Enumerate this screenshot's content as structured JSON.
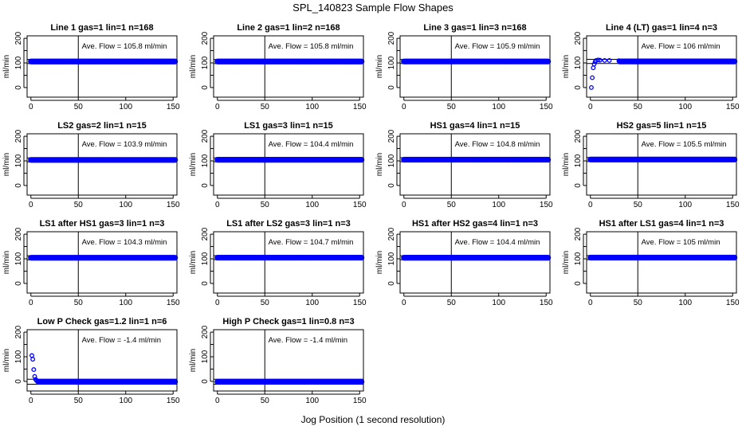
{
  "chart_data": {
    "type": "scatter",
    "title": "SPL_140823  Sample Flow Shapes",
    "xlabel": "Jog Position (1 second resolution)",
    "ylabel": "ml/min",
    "xlim": [
      -4,
      154
    ],
    "ylim": [
      -39,
      210
    ],
    "xticks": [
      0,
      50,
      100,
      150
    ],
    "yticks": [
      0,
      50,
      100,
      150,
      200
    ],
    "ytick_labels": [
      "0",
      "",
      "100",
      "",
      "200"
    ],
    "vline_x": 50,
    "ann_prefix": "Ave. Flow = ",
    "ann_unit": "ml/min",
    "series_color": "#0000ff",
    "panels": [
      {
        "title": "Line 1 gas=1 lin=1 n=168",
        "avg": "105.8",
        "steady": 105.8,
        "startup": []
      },
      {
        "title": "Line 2 gas=1 lin=2 n=168",
        "avg": "105.8",
        "steady": 105.8,
        "startup": []
      },
      {
        "title": "Line 3 gas=1 lin=3 n=168",
        "avg": "105.9",
        "steady": 105.9,
        "startup": []
      },
      {
        "title": "Line 4 (LT) gas=1 lin=4 n=3",
        "avg": "106",
        "steady": 106,
        "startup": [
          [
            1,
            0
          ],
          [
            2,
            40
          ],
          [
            3,
            80
          ],
          [
            4,
            95
          ],
          [
            5,
            105
          ],
          [
            6,
            110
          ],
          [
            8,
            112
          ],
          [
            10,
            111
          ],
          [
            15,
            110
          ],
          [
            20,
            110
          ],
          [
            30,
            109
          ]
        ]
      },
      {
        "title": "LS2 gas=2 lin=1 n=15",
        "avg": "103.9",
        "steady": 103.9,
        "startup": []
      },
      {
        "title": "LS1 gas=3 lin=1 n=15",
        "avg": "104.4",
        "steady": 104.4,
        "startup": []
      },
      {
        "title": "HS1 gas=4 lin=1 n=15",
        "avg": "104.8",
        "steady": 104.8,
        "startup": []
      },
      {
        "title": "HS2 gas=5 lin=1 n=15",
        "avg": "105.5",
        "steady": 105.5,
        "startup": []
      },
      {
        "title": "LS1 after HS1 gas=3 lin=1 n=3",
        "avg": "104.3",
        "steady": 104.3,
        "startup": []
      },
      {
        "title": "LS1 after LS2 gas=3 lin=1 n=3",
        "avg": "104.7",
        "steady": 104.7,
        "startup": []
      },
      {
        "title": "HS1 after HS2 gas=4 lin=1 n=3",
        "avg": "104.4",
        "steady": 104.4,
        "startup": []
      },
      {
        "title": "HS1 after LS1 gas=4 lin=1 n=3",
        "avg": "105",
        "steady": 105,
        "startup": []
      },
      {
        "title": "Low P Check gas=1.2 lin=1 n=6",
        "avg": "-1.4",
        "steady": -1.4,
        "startup": [
          [
            1,
            105
          ],
          [
            2,
            90
          ],
          [
            3,
            48
          ],
          [
            4,
            20
          ],
          [
            5,
            8
          ],
          [
            6,
            3
          ],
          [
            7,
            0
          ]
        ]
      },
      {
        "title": "High P Check gas=1 lin=0.8 n=3",
        "avg": "-1.4",
        "steady": -1.4,
        "startup": []
      }
    ]
  }
}
